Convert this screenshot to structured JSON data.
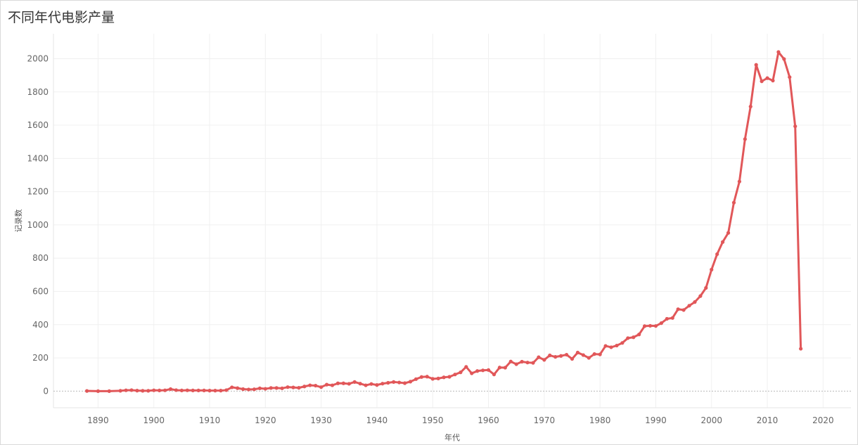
{
  "title": "不同年代电影产量",
  "chart_data": {
    "type": "line",
    "title": "不同年代电影产量",
    "xlabel": "年代",
    "ylabel": "记录数",
    "xlim": [
      1882,
      2025
    ],
    "ylim": [
      -100,
      2150
    ],
    "xticks": [
      1890,
      1900,
      1910,
      1920,
      1930,
      1940,
      1950,
      1960,
      1970,
      1980,
      1990,
      2000,
      2010,
      2020
    ],
    "yticks": [
      0,
      200,
      400,
      600,
      800,
      1000,
      1200,
      1400,
      1600,
      1800,
      2000
    ],
    "grid": true,
    "color": "#e15759",
    "series": [
      {
        "x": [
          1888,
          1890,
          1892,
          1894,
          1895,
          1896,
          1897,
          1898,
          1899,
          1900,
          1901,
          1902,
          1903,
          1904,
          1905,
          1906,
          1907,
          1908,
          1909,
          1910,
          1911,
          1912,
          1913,
          1914,
          1915,
          1916,
          1917,
          1918,
          1919,
          1920,
          1921,
          1922,
          1923,
          1924,
          1925,
          1926,
          1927,
          1928,
          1929,
          1930,
          1931,
          1932,
          1933,
          1934,
          1935,
          1936,
          1937,
          1938,
          1939,
          1940,
          1941,
          1942,
          1943,
          1944,
          1945,
          1946,
          1947,
          1948,
          1949,
          1950,
          1951,
          1952,
          1953,
          1954,
          1955,
          1956,
          1957,
          1958,
          1959,
          1960,
          1961,
          1962,
          1963,
          1964,
          1965,
          1966,
          1967,
          1968,
          1969,
          1970,
          1971,
          1972,
          1973,
          1974,
          1975,
          1976,
          1977,
          1978,
          1979,
          1980,
          1981,
          1982,
          1983,
          1984,
          1985,
          1986,
          1987,
          1988,
          1989,
          1990,
          1991,
          1992,
          1993,
          1994,
          1995,
          1996,
          1997,
          1998,
          1999,
          2000,
          2001,
          2002,
          2003,
          2004,
          2005,
          2006,
          2007,
          2008,
          2009,
          2010,
          2011,
          2012,
          2013,
          2014,
          2015,
          2016
        ],
        "y": [
          1,
          0,
          0,
          2,
          5,
          6,
          3,
          2,
          2,
          5,
          4,
          5,
          12,
          6,
          4,
          5,
          4,
          4,
          4,
          3,
          3,
          3,
          6,
          23,
          18,
          12,
          10,
          11,
          17,
          14,
          19,
          19,
          17,
          24,
          22,
          20,
          28,
          35,
          33,
          24,
          39,
          35,
          47,
          47,
          44,
          55,
          45,
          35,
          43,
          37,
          45,
          50,
          55,
          52,
          48,
          57,
          72,
          85,
          87,
          74,
          76,
          83,
          86,
          100,
          113,
          146,
          107,
          121,
          125,
          127,
          100,
          142,
          141,
          178,
          162,
          177,
          172,
          170,
          204,
          188,
          215,
          206,
          212,
          219,
          194,
          232,
          217,
          200,
          223,
          221,
          272,
          264,
          274,
          290,
          319,
          324,
          341,
          391,
          393,
          392,
          409,
          435,
          440,
          493,
          488,
          514,
          536,
          572,
          621,
          731,
          824,
          897,
          952,
          1134,
          1261,
          1516,
          1712,
          1963,
          1864,
          1883,
          1868,
          2040,
          1998,
          1889,
          1593,
          255
        ]
      }
    ]
  }
}
